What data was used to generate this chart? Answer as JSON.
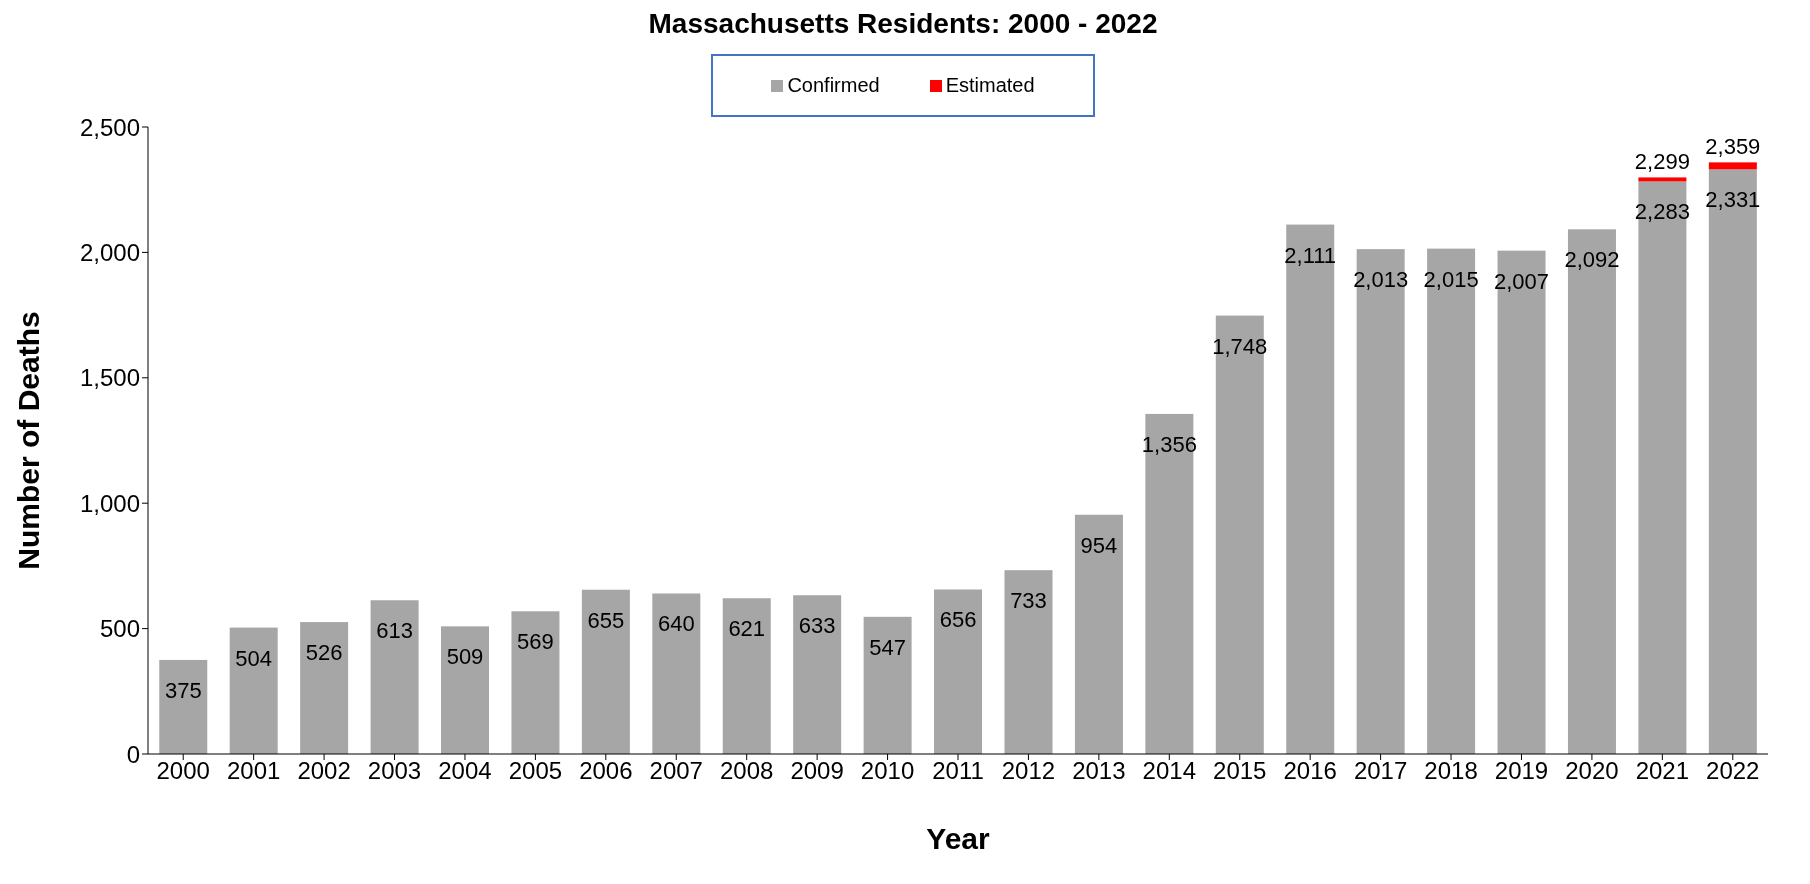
{
  "chart_data": {
    "type": "bar",
    "title": "Massachusetts Residents: 2000 - 2022",
    "xlabel": "Year",
    "ylabel": "Number of Deaths",
    "categories": [
      "2000",
      "2001",
      "2002",
      "2003",
      "2004",
      "2005",
      "2006",
      "2007",
      "2008",
      "2009",
      "2010",
      "2011",
      "2012",
      "2013",
      "2014",
      "2015",
      "2016",
      "2017",
      "2018",
      "2019",
      "2020",
      "2021",
      "2022"
    ],
    "stacked": true,
    "series": [
      {
        "name": "Confirmed",
        "color": "#a6a6a6",
        "values": [
          375,
          504,
          526,
          613,
          509,
          569,
          655,
          640,
          621,
          633,
          547,
          656,
          733,
          954,
          1356,
          1748,
          2111,
          2013,
          2015,
          2007,
          2092,
          2283,
          2331
        ],
        "value_labels": [
          "375",
          "504",
          "526",
          "613",
          "509",
          "569",
          "655",
          "640",
          "621",
          "633",
          "547",
          "656",
          "733",
          "954",
          "1,356",
          "1,748",
          "2,111",
          "2,013",
          "2,015",
          "2,007",
          "2,092",
          "2,283",
          "2,331"
        ]
      },
      {
        "name": "Estimated",
        "color": "#ff0000",
        "values": [
          null,
          null,
          null,
          null,
          null,
          null,
          null,
          null,
          null,
          null,
          null,
          null,
          null,
          null,
          null,
          null,
          null,
          null,
          null,
          null,
          null,
          16,
          28
        ]
      }
    ],
    "totals": [
      null,
      null,
      null,
      null,
      null,
      null,
      null,
      null,
      null,
      null,
      null,
      null,
      null,
      null,
      null,
      null,
      null,
      null,
      null,
      null,
      null,
      "2,299",
      "2,359"
    ],
    "ylim": [
      0,
      2500
    ],
    "yticks": [
      0,
      {
        "value": 500,
        "label": "500"
      },
      {
        "value": 1000,
        "label": "1,000"
      },
      {
        "value": 1500,
        "label": "1,500"
      },
      {
        "value": 2000,
        "label": "2,000"
      },
      {
        "value": 2500,
        "label": "2,500"
      }
    ],
    "grid": false,
    "legend": "top"
  }
}
